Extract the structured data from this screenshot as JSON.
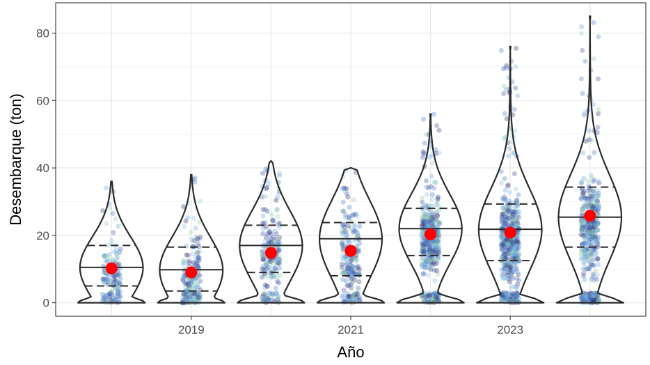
{
  "chart_data": {
    "type": "violin",
    "title": "",
    "xlabel": "Año",
    "ylabel": "Desembarque (ton)",
    "x_ticks": [
      2019,
      2021,
      2023
    ],
    "y_ticks": [
      0,
      20,
      40,
      60,
      80
    ],
    "xlim": [
      2017.3,
      2024.7
    ],
    "ylim": [
      -4,
      89
    ],
    "grid": true,
    "jitter_palette": [
      "#2d2f6e",
      "#3b4fa3",
      "#4a78c9",
      "#5fa3dc",
      "#86c2e6",
      "#8fd0a8"
    ],
    "mean_color": "#ff0000",
    "violins": [
      {
        "year": 2018,
        "min": 0,
        "max": 36,
        "q1": 5,
        "median": 10.5,
        "q3": 17,
        "mean": 10.2,
        "n": 160
      },
      {
        "year": 2019,
        "min": 0,
        "max": 38,
        "q1": 3.5,
        "median": 9.8,
        "q3": 16.5,
        "mean": 9.0,
        "n": 200
      },
      {
        "year": 2020,
        "min": 0,
        "max": 42,
        "q1": 9,
        "median": 17,
        "q3": 23,
        "mean": 14.8,
        "n": 200
      },
      {
        "year": 2021,
        "min": 0,
        "max": 40,
        "q1": 8,
        "median": 19,
        "q3": 23.8,
        "mean": 15.4,
        "n": 220
      },
      {
        "year": 2022,
        "min": 0,
        "max": 56,
        "q1": 14,
        "median": 22,
        "q3": 28,
        "mean": 20.3,
        "n": 420
      },
      {
        "year": 2023,
        "min": 0,
        "max": 76,
        "q1": 12.5,
        "median": 21.8,
        "q3": 29.3,
        "mean": 20.8,
        "n": 520
      },
      {
        "year": 2024,
        "min": 0,
        "max": 85,
        "q1": 16.5,
        "median": 25.4,
        "q3": 34.3,
        "mean": 25.8,
        "n": 440
      }
    ]
  }
}
